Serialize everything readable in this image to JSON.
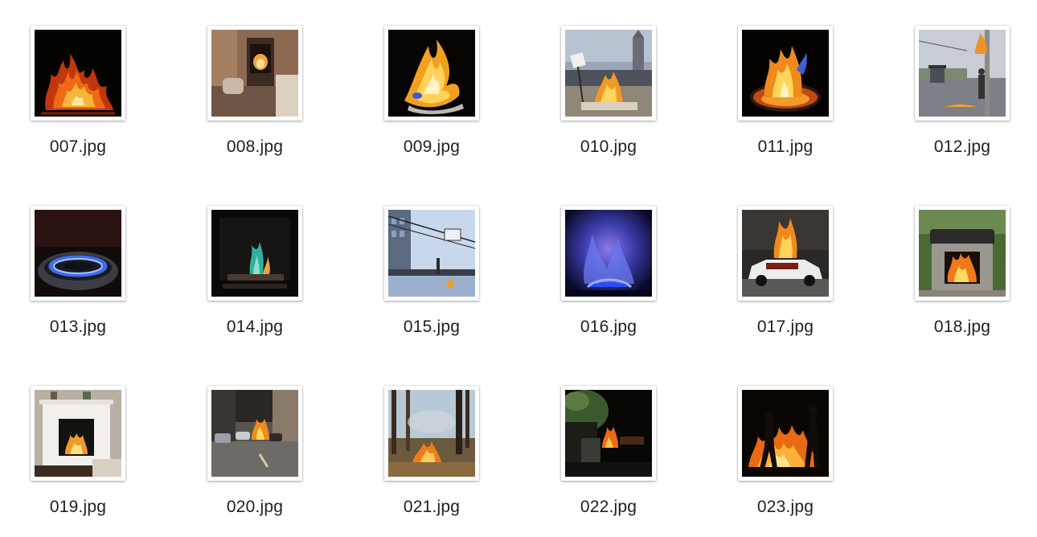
{
  "files": [
    {
      "name": "007.jpg",
      "icon": "fire-on-black-thumbnail-icon"
    },
    {
      "name": "008.jpg",
      "icon": "fireplace-room-thumbnail-icon"
    },
    {
      "name": "009.jpg",
      "icon": "burning-paper-thumbnail-icon"
    },
    {
      "name": "010.jpg",
      "icon": "street-riot-fire-thumbnail-icon"
    },
    {
      "name": "011.jpg",
      "icon": "fire-pit-thumbnail-icon"
    },
    {
      "name": "012.jpg",
      "icon": "street-pole-fire-thumbnail-icon"
    },
    {
      "name": "013.jpg",
      "icon": "gas-burner-thumbnail-icon"
    },
    {
      "name": "014.jpg",
      "icon": "dark-fireplace-thumbnail-icon"
    },
    {
      "name": "015.jpg",
      "icon": "winter-street-thumbnail-icon"
    },
    {
      "name": "016.jpg",
      "icon": "blue-gas-flame-thumbnail-icon"
    },
    {
      "name": "017.jpg",
      "icon": "burning-police-car-thumbnail-icon"
    },
    {
      "name": "018.jpg",
      "icon": "outdoor-stove-fire-thumbnail-icon"
    },
    {
      "name": "019.jpg",
      "icon": "white-brick-fireplace-thumbnail-icon"
    },
    {
      "name": "020.jpg",
      "icon": "street-car-fire-thumbnail-icon"
    },
    {
      "name": "021.jpg",
      "icon": "forest-fire-thumbnail-icon"
    },
    {
      "name": "022.jpg",
      "icon": "night-tree-fire-thumbnail-icon"
    },
    {
      "name": "023.jpg",
      "icon": "night-bonfire-figures-thumbnail-icon"
    }
  ]
}
